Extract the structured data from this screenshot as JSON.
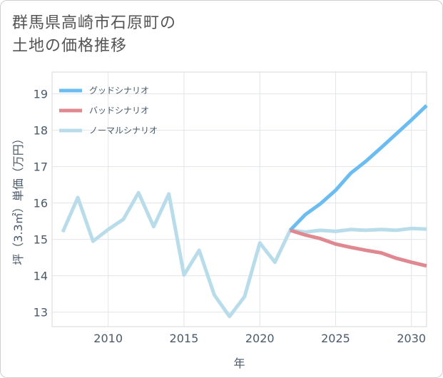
{
  "chart_data": {
    "type": "line",
    "title_lines": [
      "群馬県高崎市石原町の",
      "土地の価格推移"
    ],
    "xlabel": "年",
    "ylabel": "坪（3.3㎡）単価（万円）",
    "xlim": [
      2006.3,
      2031
    ],
    "ylim": [
      12.6,
      19.6
    ],
    "x_ticks": [
      2010,
      2015,
      2020,
      2025,
      2030
    ],
    "y_ticks": [
      13,
      14,
      15,
      16,
      17,
      18,
      19
    ],
    "legend_position": "top-left",
    "series": [
      {
        "name": "グッドシナリオ",
        "color": "#6bbcf0",
        "x": [
          2022,
          2023,
          2024,
          2025,
          2026,
          2027,
          2028,
          2029,
          2030,
          2031
        ],
        "values": [
          15.25,
          15.68,
          15.98,
          16.35,
          16.82,
          17.15,
          17.52,
          17.9,
          18.28,
          18.68
        ]
      },
      {
        "name": "バッドシナリオ",
        "color": "#e08890",
        "x": [
          2022,
          2023,
          2024,
          2025,
          2026,
          2027,
          2028,
          2029,
          2030,
          2031
        ],
        "values": [
          15.25,
          15.12,
          15.02,
          14.87,
          14.78,
          14.7,
          14.63,
          14.48,
          14.37,
          14.27
        ]
      },
      {
        "name": "ノーマルシナリオ",
        "color": "#b8dcea",
        "x": [
          2007,
          2008,
          2009,
          2010,
          2011,
          2012,
          2013,
          2014,
          2015,
          2016,
          2017,
          2018,
          2019,
          2020,
          2021,
          2022,
          2023,
          2024,
          2025,
          2026,
          2027,
          2028,
          2029,
          2030,
          2031
        ],
        "values": [
          15.2,
          16.15,
          14.95,
          15.27,
          15.55,
          16.28,
          15.35,
          16.25,
          14.02,
          14.7,
          13.47,
          12.88,
          13.43,
          14.9,
          14.37,
          15.25,
          15.2,
          15.25,
          15.22,
          15.27,
          15.25,
          15.27,
          15.25,
          15.3,
          15.28
        ]
      }
    ]
  }
}
